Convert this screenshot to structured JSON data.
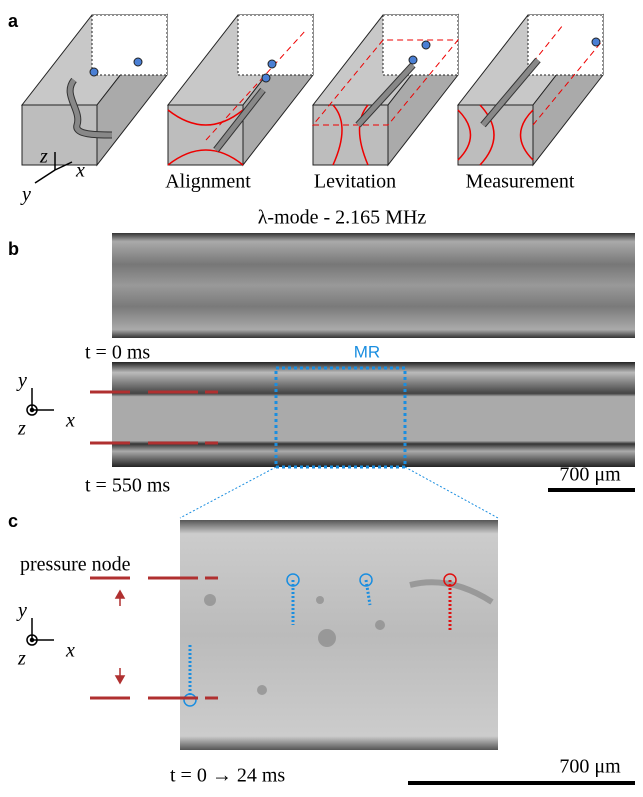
{
  "panels": {
    "a": {
      "label": "a",
      "captions": [
        "Alignment",
        "Levitation",
        "Measurement"
      ],
      "axes": {
        "z": "z",
        "x": "x",
        "y": "y"
      }
    },
    "b": {
      "label": "b",
      "title": "λ-mode - 2.165 MHz",
      "frame_labels": [
        "t = 0 ms",
        "t = 550 ms"
      ],
      "roi": "MR",
      "scale_bar": "700 μm",
      "axes": {
        "y": "y",
        "x": "x",
        "z": "z"
      }
    },
    "c": {
      "label": "c",
      "pressure_node": "pressure node",
      "time": "t = 0 → 24 ms",
      "scale_bar": "700 μm",
      "axes": {
        "y": "y",
        "x": "x",
        "z": "z"
      }
    }
  }
}
